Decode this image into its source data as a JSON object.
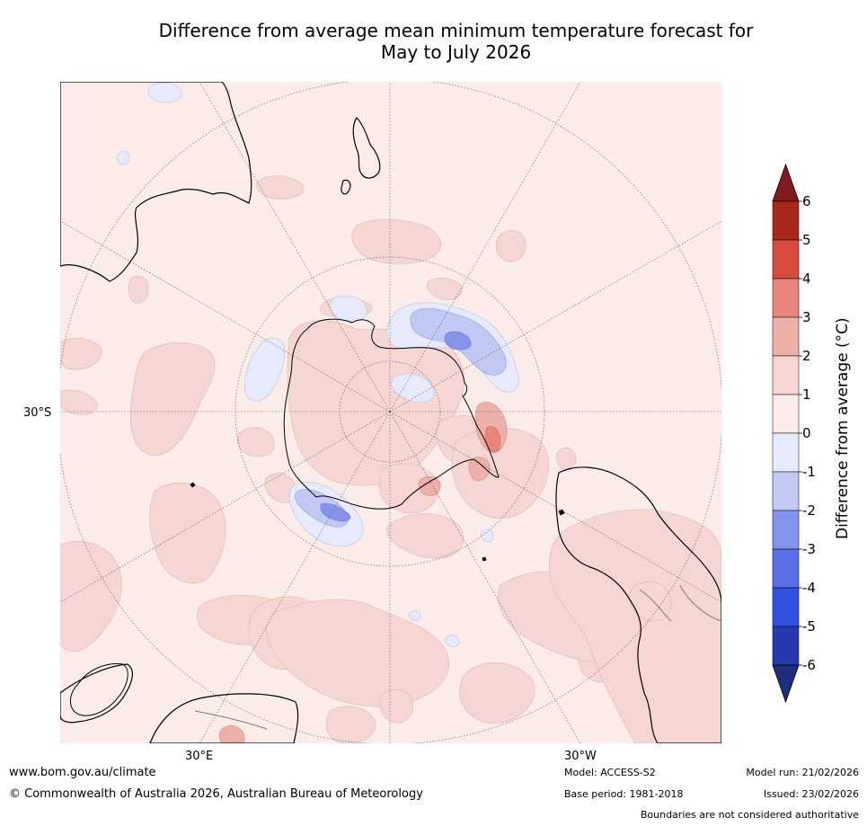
{
  "title": {
    "line1": "Difference from average mean minimum temperature forecast for",
    "line2": "May to July 2026"
  },
  "map": {
    "lat_label": "30°S",
    "lon_labels": {
      "east": "30°E",
      "west": "30°W"
    },
    "projection": "south-polar-stereographic"
  },
  "colorbar": {
    "label": "Difference from average (°C)",
    "ticks": [
      "6",
      "5",
      "4",
      "3",
      "2",
      "1",
      "0",
      "-1",
      "-2",
      "-3",
      "-4",
      "-5",
      "-6"
    ],
    "colors": {
      "over": "#7f1d1d",
      "b5_6": "#a8281e",
      "b4_5": "#d94b3f",
      "b3_4": "#e8867c",
      "b2_3": "#eeb1aa",
      "b1_2": "#f5d6d3",
      "b0_1": "#fbecea",
      "bm1_0": "#e6eafb",
      "bm2_m1": "#c1c8f3",
      "bm3_m2": "#8593ea",
      "bm4_m3": "#5b6fe6",
      "bm5_m4": "#3351e0",
      "bm6_m5": "#263aae",
      "under": "#1f2c80"
    }
  },
  "footer": {
    "url": "www.bom.gov.au/climate",
    "copyright": "© Commonwealth of Australia 2026, Australian Bureau of Meteorology",
    "model": "Model: ACCESS-S2",
    "base_period": "Base period: 1981-2018",
    "model_run": "Model run: 21/02/2026",
    "issued": "Issued: 23/02/2026",
    "disclaimer": "Boundaries are not considered authoritative"
  }
}
